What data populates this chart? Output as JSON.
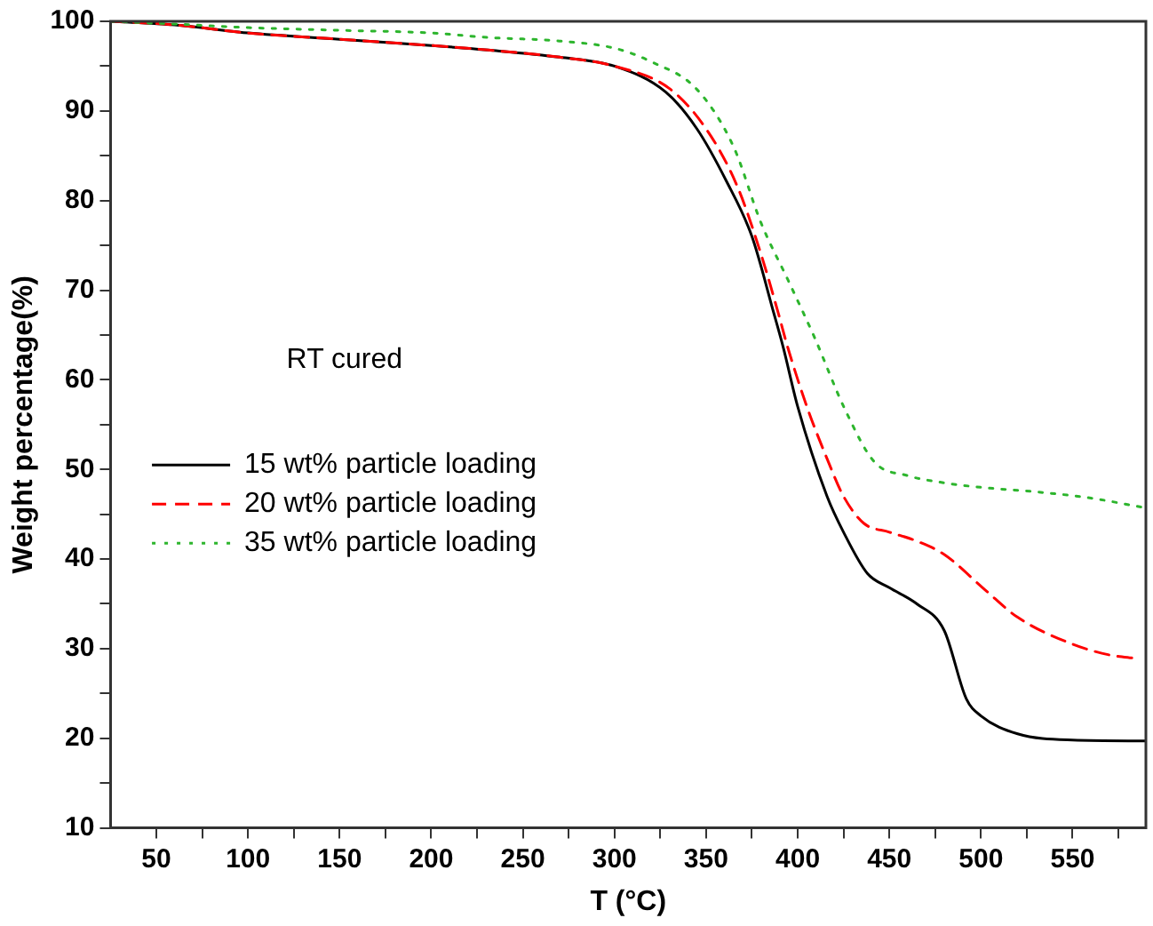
{
  "chart_data": {
    "type": "line",
    "xlabel": "T (°C)",
    "ylabel": "Weight percentage(%)",
    "xlim": [
      25,
      590
    ],
    "ylim": [
      10,
      100
    ],
    "xticks": [
      50,
      {
        "value": 75,
        "label": null
      },
      100,
      {
        "value": 125,
        "label": null
      },
      150,
      {
        "value": 175,
        "label": null
      },
      200,
      {
        "value": 225,
        "label": null
      },
      250,
      {
        "value": 275,
        "label": null
      },
      300,
      {
        "value": 325,
        "label": null
      },
      350,
      {
        "value": 375,
        "label": null
      },
      400,
      {
        "value": 425,
        "label": null
      },
      450,
      {
        "value": 475,
        "label": null
      },
      500,
      {
        "value": 525,
        "label": null
      },
      550,
      {
        "value": 575,
        "label": null
      }
    ],
    "yticks": [
      10,
      {
        "value": 15,
        "label": null
      },
      20,
      {
        "value": 25,
        "label": null
      },
      30,
      {
        "value": 35,
        "label": null
      },
      40,
      {
        "value": 45,
        "label": null
      },
      50,
      {
        "value": 55,
        "label": null
      },
      60,
      {
        "value": 65,
        "label": null
      },
      70,
      {
        "value": 75,
        "label": null
      },
      80,
      {
        "value": 85,
        "label": null
      },
      90,
      {
        "value": 95,
        "label": null
      },
      100
    ],
    "grid": false,
    "legend": "left",
    "marker": "none",
    "annotations": [
      "RT cured"
    ],
    "series": [
      {
        "name": "15 wt% particle loading",
        "color": "#000000",
        "line_style": "solid",
        "x": [
          25,
          60,
          100,
          150,
          200,
          231,
          270,
          300,
          328,
          345,
          361,
          375,
          387,
          392,
          400,
          416,
          425,
          438,
          450,
          465,
          480,
          492,
          500,
          520,
          550,
          590
        ],
        "values": [
          100,
          99.6,
          98.7,
          98,
          97.3,
          96.8,
          96,
          95,
          92.1,
          88,
          82.2,
          76,
          67.4,
          63.7,
          57,
          47,
          43,
          38.4,
          36.8,
          35,
          32,
          24.4,
          22.5,
          20.5,
          19.8,
          19.7
        ]
      },
      {
        "name": "20 wt% particle loading",
        "color": "#ff0000",
        "line_style": "dashed",
        "x": [
          25,
          60,
          100,
          150,
          200,
          231,
          270,
          300,
          330,
          350,
          367,
          380,
          390,
          394,
          405,
          416,
          425,
          436,
          450,
          465,
          480,
          502,
          520,
          550,
          570,
          585
        ],
        "values": [
          100,
          99.6,
          98.7,
          98,
          97.3,
          96.8,
          96,
          95,
          92.5,
          88,
          81.6,
          74,
          67,
          64,
          57,
          51.2,
          47,
          44,
          43,
          42,
          40.5,
          36.6,
          33.5,
          30.5,
          29.3,
          28.9
        ]
      },
      {
        "name": "35 wt% particle loading",
        "color": "#2db52d",
        "line_style": "dotted",
        "x": [
          25,
          60,
          100,
          150,
          200,
          231,
          270,
          300,
          320,
          345,
          365,
          380,
          395,
          409,
          426,
          442,
          460,
          480,
          500,
          530,
          560,
          590
        ],
        "values": [
          100,
          99.7,
          99.3,
          99,
          98.7,
          98.2,
          97.8,
          97,
          95.5,
          92.4,
          86,
          77.5,
          71,
          64.8,
          56.6,
          50.8,
          49.3,
          48.5,
          48,
          47.5,
          46.8,
          45.7
        ]
      }
    ]
  }
}
